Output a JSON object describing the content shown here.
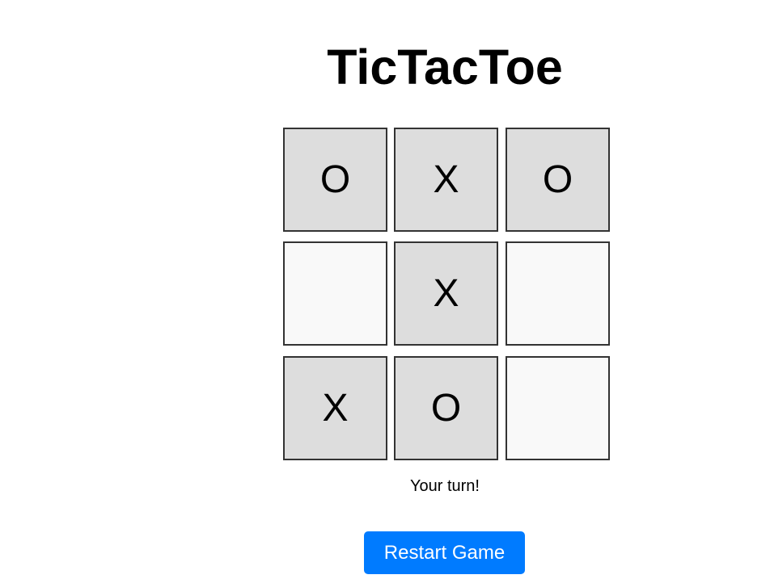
{
  "title": "TicTacToe",
  "board": {
    "cells": [
      "O",
      "X",
      "O",
      "",
      "X",
      "",
      "X",
      "O",
      ""
    ]
  },
  "status": "Your turn!",
  "restart_label": "Restart Game",
  "colors": {
    "button": "#007bff",
    "filled_cell": "#dddddd",
    "empty_cell": "#f9f9f9",
    "cell_border": "#333333"
  }
}
